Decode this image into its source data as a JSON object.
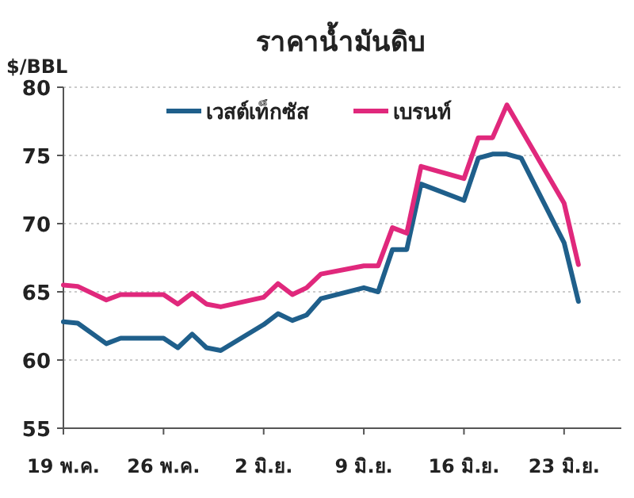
{
  "chart_data": {
    "type": "line",
    "title": "ราคาน้ำมันดิบ",
    "ylabel": "$/BBL",
    "series": [
      {
        "name": "เวสต์เท็กซัส",
        "color": "#1f5f8b",
        "x": [
          "--05-19",
          "--05-20",
          "--05-22",
          "--05-23",
          "--05-26",
          "--05-27",
          "--05-28",
          "--05-29",
          "--05-30",
          "--06-02",
          "--06-03",
          "--06-04",
          "--06-05",
          "--06-06",
          "--06-09",
          "--06-10",
          "--06-11",
          "--06-12",
          "--06-13",
          "--06-16",
          "--06-17",
          "--06-18",
          "--06-19",
          "--06-20",
          "--06-23",
          "--06-24"
        ],
        "values": [
          62.8,
          62.7,
          61.2,
          61.6,
          61.6,
          60.9,
          61.9,
          60.9,
          60.7,
          62.6,
          63.4,
          62.9,
          63.3,
          64.5,
          65.3,
          65.0,
          68.1,
          68.1,
          72.9,
          71.7,
          74.8,
          75.1,
          75.1,
          74.8,
          68.6,
          64.3
        ]
      },
      {
        "name": "เบรนท์",
        "color": "#e0287c",
        "x": [
          "--05-19",
          "--05-20",
          "--05-22",
          "--05-23",
          "--05-26",
          "--05-27",
          "--05-28",
          "--05-29",
          "--05-30",
          "--06-02",
          "--06-03",
          "--06-04",
          "--06-05",
          "--06-06",
          "--06-09",
          "--06-10",
          "--06-11",
          "--06-12",
          "--06-13",
          "--06-16",
          "--06-17",
          "--06-18",
          "--06-19",
          "--06-23",
          "--06-24"
        ],
        "values": [
          65.5,
          65.4,
          64.4,
          64.8,
          64.8,
          64.1,
          64.9,
          64.1,
          63.9,
          64.6,
          65.6,
          64.8,
          65.3,
          66.3,
          66.9,
          66.9,
          69.7,
          69.3,
          74.2,
          73.3,
          76.3,
          76.3,
          78.7,
          71.5,
          67.0
        ]
      }
    ],
    "xlim": [
      "--05-19",
      "--06-27"
    ],
    "xticks": [
      {
        "value": "--05-19",
        "label": "19 พ.ค."
      },
      {
        "value": "--05-26",
        "label": "26 พ.ค."
      },
      {
        "value": "--06-02",
        "label": "2 มิ.ย."
      },
      {
        "value": "--06-09",
        "label": "9 มิ.ย."
      },
      {
        "value": "--06-16",
        "label": "16 มิ.ย."
      },
      {
        "value": "--06-23",
        "label": "23 มิ.ย."
      }
    ],
    "ylim": [
      55,
      80
    ],
    "yticks": [
      55,
      60,
      65,
      70,
      75,
      80
    ],
    "grid": "y",
    "legend": "top",
    "line_style": "solid",
    "marker": "none"
  }
}
